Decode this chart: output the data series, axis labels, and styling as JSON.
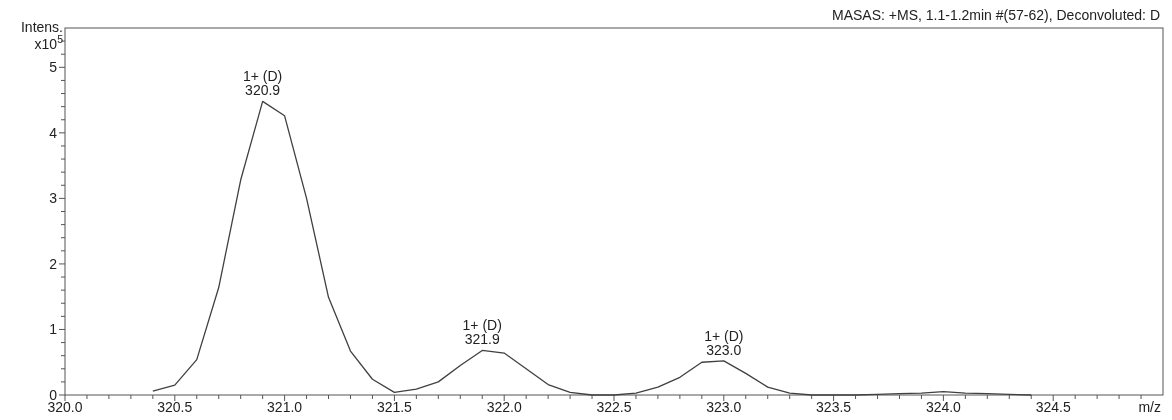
{
  "chart_data": {
    "type": "line",
    "title": "MASAS: +MS, 1.1-1.2min #(57-62), Deconvoluted: D",
    "xlabel": "m/z",
    "ylabel": "Intens. x10$^{5}$",
    "x": [
      320.4,
      320.5,
      320.6,
      320.7,
      320.8,
      320.9,
      321.0,
      321.1,
      321.2,
      321.3,
      321.4,
      321.5,
      321.6,
      321.7,
      321.8,
      321.9,
      322.0,
      322.1,
      322.2,
      322.3,
      322.4,
      322.5,
      322.6,
      322.7,
      322.8,
      322.9,
      323.0,
      323.1,
      323.2,
      323.3,
      323.4,
      323.5,
      323.6,
      323.7,
      323.8,
      323.9,
      324.0,
      324.1,
      324.2,
      324.3,
      324.4
    ],
    "series": [
      {
        "color": "#404040",
        "values": [
          0.06,
          0.15,
          0.54,
          1.64,
          3.28,
          4.48,
          4.26,
          3.0,
          1.49,
          0.67,
          0.24,
          0.04,
          0.09,
          0.2,
          0.45,
          0.68,
          0.64,
          0.4,
          0.16,
          0.04,
          0.0,
          0.0,
          0.03,
          0.12,
          0.27,
          0.5,
          0.52,
          0.33,
          0.12,
          0.03,
          0.0,
          0.0,
          0.0,
          0.01,
          0.02,
          0.03,
          0.05,
          0.03,
          0.02,
          0.01,
          0.0
        ]
      }
    ],
    "xlim": [
      320.0,
      325.0
    ],
    "ylim": [
      0,
      5.6
    ],
    "xticks": [
      {
        "value": 320.0,
        "label": "320.0"
      },
      {
        "value": 320.1,
        "label": null
      },
      {
        "value": 320.2,
        "label": null
      },
      {
        "value": 320.3,
        "label": null
      },
      {
        "value": 320.4,
        "label": null
      },
      {
        "value": 320.5,
        "label": "320.5"
      },
      {
        "value": 320.6,
        "label": null
      },
      {
        "value": 320.7,
        "label": null
      },
      {
        "value": 320.8,
        "label": null
      },
      {
        "value": 320.9,
        "label": null
      },
      {
        "value": 321.0,
        "label": "321.0"
      },
      {
        "value": 321.1,
        "label": null
      },
      {
        "value": 321.2,
        "label": null
      },
      {
        "value": 321.3,
        "label": null
      },
      {
        "value": 321.4,
        "label": null
      },
      {
        "value": 321.5,
        "label": "321.5"
      },
      {
        "value": 321.6,
        "label": null
      },
      {
        "value": 321.7,
        "label": null
      },
      {
        "value": 321.8,
        "label": null
      },
      {
        "value": 321.9,
        "label": null
      },
      {
        "value": 322.0,
        "label": "322.0"
      },
      {
        "value": 322.1,
        "label": null
      },
      {
        "value": 322.2,
        "label": null
      },
      {
        "value": 322.3,
        "label": null
      },
      {
        "value": 322.4,
        "label": null
      },
      {
        "value": 322.5,
        "label": "322.5"
      },
      {
        "value": 322.6,
        "label": null
      },
      {
        "value": 322.7,
        "label": null
      },
      {
        "value": 322.8,
        "label": null
      },
      {
        "value": 322.9,
        "label": null
      },
      {
        "value": 323.0,
        "label": "323.0"
      },
      {
        "value": 323.1,
        "label": null
      },
      {
        "value": 323.2,
        "label": null
      },
      {
        "value": 323.3,
        "label": null
      },
      {
        "value": 323.4,
        "label": null
      },
      {
        "value": 323.5,
        "label": "323.5"
      },
      {
        "value": 323.6,
        "label": null
      },
      {
        "value": 323.7,
        "label": null
      },
      {
        "value": 323.8,
        "label": null
      },
      {
        "value": 323.9,
        "label": null
      },
      {
        "value": 324.0,
        "label": "324.0"
      },
      {
        "value": 324.1,
        "label": null
      },
      {
        "value": 324.2,
        "label": null
      },
      {
        "value": 324.3,
        "label": null
      },
      {
        "value": 324.4,
        "label": null
      },
      {
        "value": 324.5,
        "label": "324.5"
      },
      {
        "value": 324.6,
        "label": null
      },
      {
        "value": 324.7,
        "label": null
      },
      {
        "value": 324.8,
        "label": null
      },
      {
        "value": 324.9,
        "label": null
      }
    ],
    "yticks": [
      0,
      {
        "value": 0.2,
        "label": null
      },
      {
        "value": 0.4,
        "label": null
      },
      {
        "value": 0.6,
        "label": null
      },
      {
        "value": 0.8,
        "label": null
      },
      1,
      {
        "value": 1.2,
        "label": null
      },
      {
        "value": 1.4,
        "label": null
      },
      {
        "value": 1.6,
        "label": null
      },
      {
        "value": 1.8,
        "label": null
      },
      2,
      {
        "value": 2.2,
        "label": null
      },
      {
        "value": 2.4,
        "label": null
      },
      {
        "value": 2.6,
        "label": null
      },
      {
        "value": 2.8,
        "label": null
      },
      3,
      {
        "value": 3.2,
        "label": null
      },
      {
        "value": 3.4,
        "label": null
      },
      {
        "value": 3.6,
        "label": null
      },
      {
        "value": 3.8,
        "label": null
      },
      4,
      {
        "value": 4.2,
        "label": null
      },
      {
        "value": 4.4,
        "label": null
      },
      {
        "value": 4.6,
        "label": null
      },
      {
        "value": 4.8,
        "label": null
      },
      5,
      {
        "value": 5.2,
        "label": null
      },
      {
        "value": 5.4,
        "label": null
      }
    ],
    "annotations": [
      {
        "text": "1+ (D)\n320.9",
        "x": 320.9,
        "y": 4.48
      },
      {
        "text": "1+ (D)\n321.9",
        "x": 321.9,
        "y": 0.68
      },
      {
        "text": "1+ (D)\n323.0",
        "x": 323.0,
        "y": 0.52
      }
    ],
    "marker": "none",
    "line_style": "solid"
  }
}
